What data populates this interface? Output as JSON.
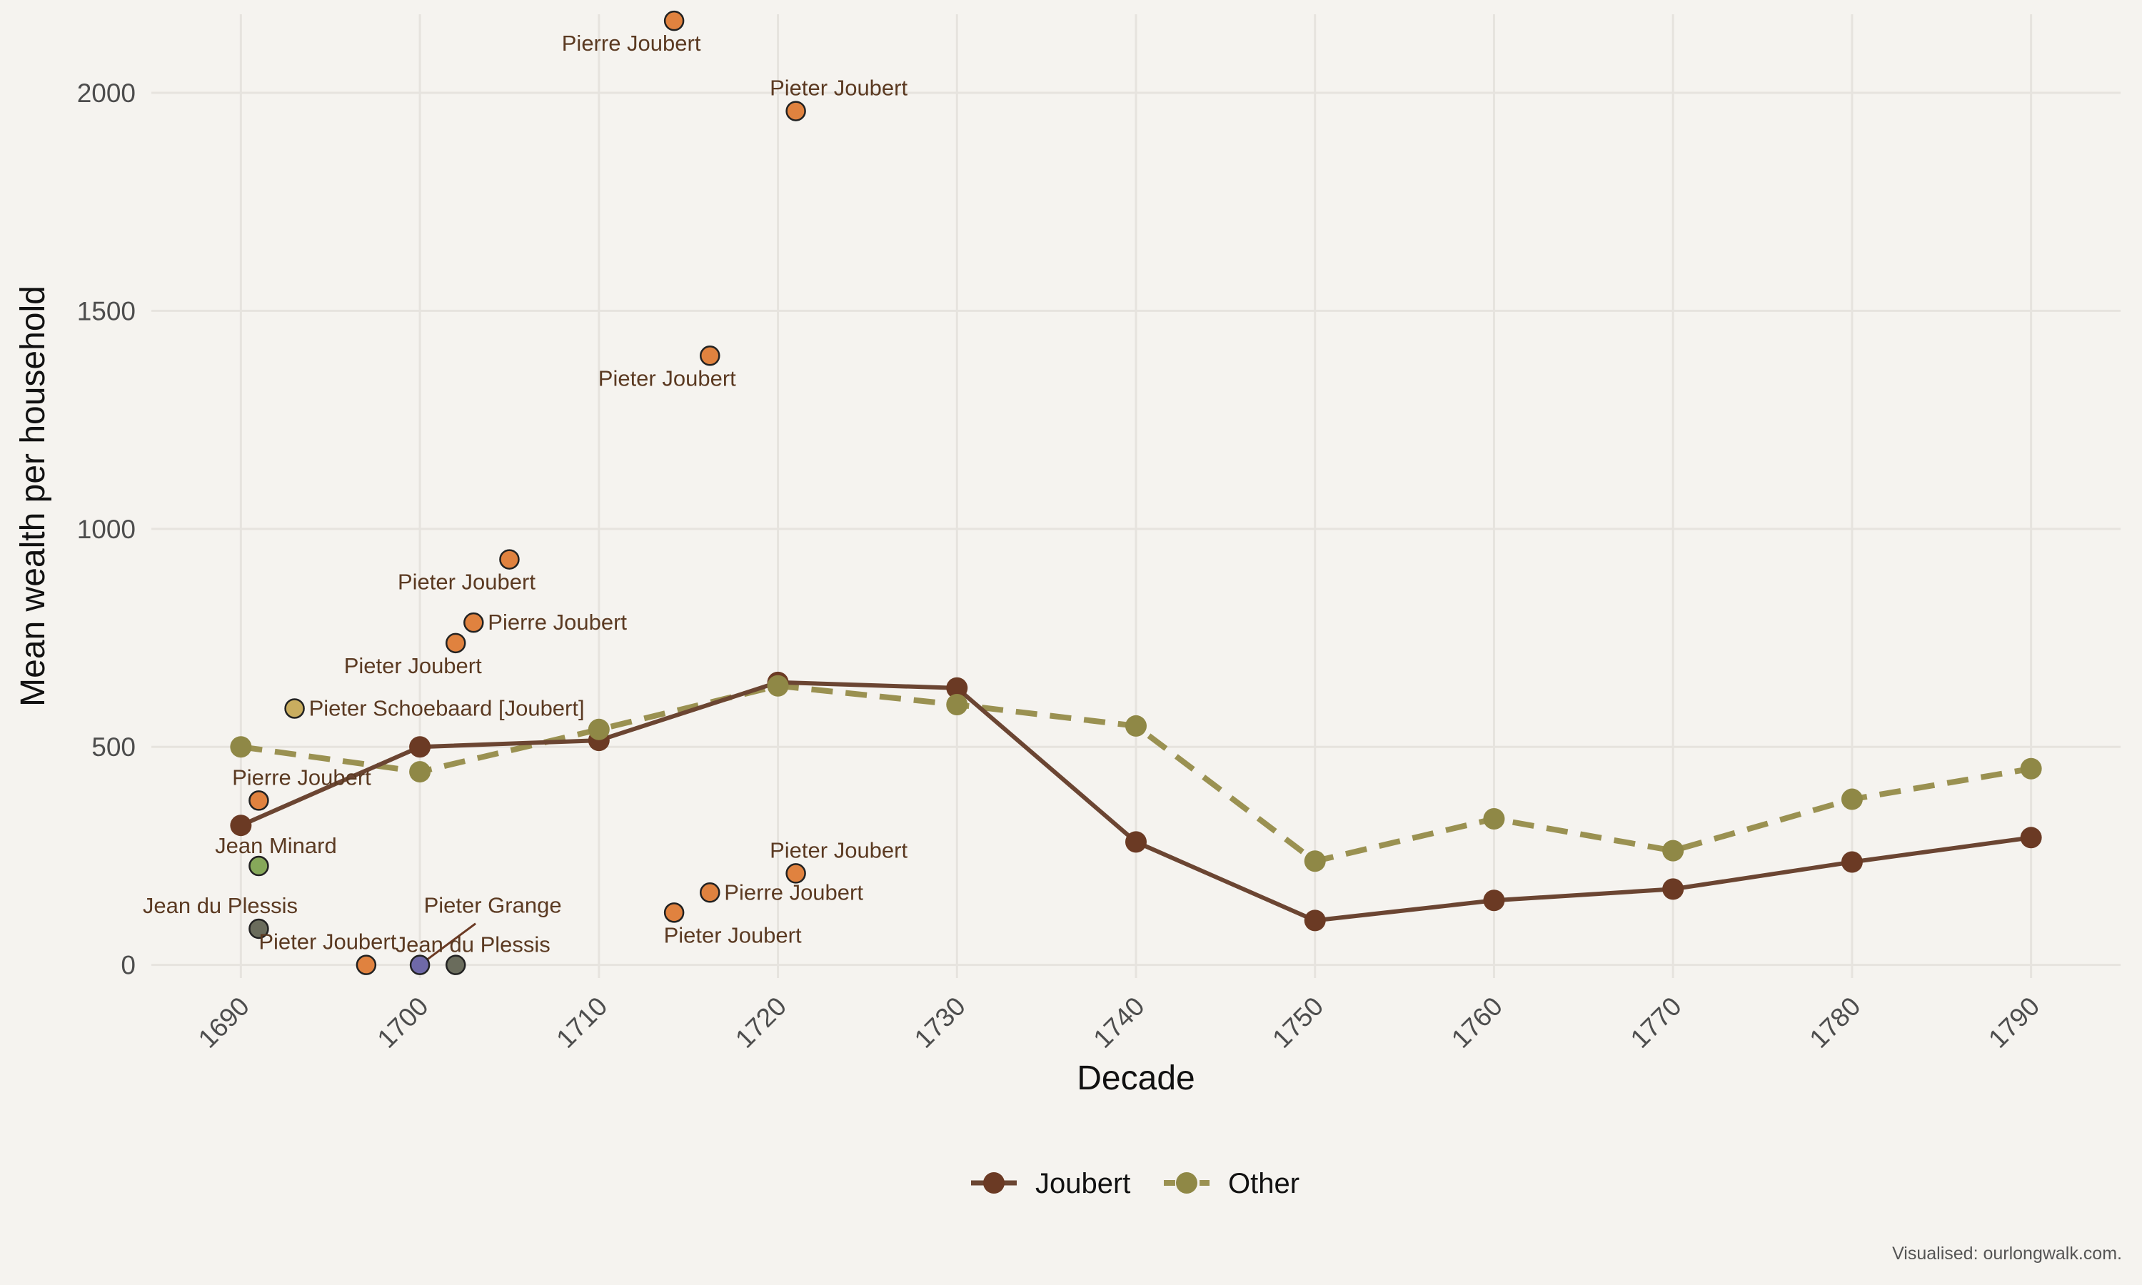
{
  "chart_data": {
    "type": "line",
    "xlabel": "Decade",
    "ylabel": "Mean wealth per household",
    "xlim": [
      1685,
      1795
    ],
    "ylim": [
      -30,
      2180
    ],
    "x_ticks": [
      1690,
      1700,
      1710,
      1720,
      1730,
      1740,
      1750,
      1760,
      1770,
      1780,
      1790
    ],
    "y_ticks": [
      0,
      500,
      1000,
      1500,
      2000
    ],
    "grid": true,
    "legend_position": "bottom",
    "caption": "Visualised: ourlongwalk.com.",
    "series": [
      {
        "name": "Joubert",
        "style": "solid",
        "color": "#6b4532",
        "point_color": "#6b3a24",
        "x": [
          1690,
          1700,
          1710,
          1720,
          1730,
          1740,
          1750,
          1760,
          1770,
          1780,
          1790
        ],
        "values": [
          320,
          500,
          515,
          648,
          635,
          282,
          102,
          148,
          174,
          236,
          292
        ]
      },
      {
        "name": "Other",
        "style": "dashed",
        "color": "#9a9151",
        "point_color": "#8f8846",
        "x": [
          1690,
          1700,
          1710,
          1720,
          1730,
          1740,
          1750,
          1760,
          1770,
          1780,
          1790
        ],
        "values": [
          500,
          443,
          540,
          640,
          597,
          548,
          238,
          335,
          262,
          380,
          450
        ]
      }
    ],
    "household_points": [
      {
        "label": "Pierre Joubert",
        "x": 1714.2,
        "y": 2165,
        "color": "#e0823f",
        "label_pos": "below"
      },
      {
        "label": "Pieter Joubert",
        "x": 1721.0,
        "y": 1958,
        "color": "#e0823f",
        "label_pos": "above"
      },
      {
        "label": "Pieter Joubert",
        "x": 1716.2,
        "y": 1397,
        "color": "#e0823f",
        "label_pos": "below-left"
      },
      {
        "label": "Pieter Joubert",
        "x": 1705.0,
        "y": 930,
        "color": "#e0823f",
        "label_pos": "below-left"
      },
      {
        "label": "Pierre Joubert",
        "x": 1703.0,
        "y": 785,
        "color": "#e0823f",
        "label_pos": "right"
      },
      {
        "label": "Pieter Joubert",
        "x": 1702.0,
        "y": 738,
        "color": "#e0823f",
        "label_pos": "below-left"
      },
      {
        "label": "Pieter Schoebaard [Joubert]",
        "x": 1693.0,
        "y": 588,
        "color": "#c9ad5f",
        "label_pos": "right"
      },
      {
        "label": "Pierre Joubert",
        "x": 1691.0,
        "y": 377,
        "color": "#e0823f",
        "label_pos": "above"
      },
      {
        "label": "Jean Minard",
        "x": 1691.0,
        "y": 227,
        "color": "#86a85a",
        "label_pos": "above-right"
      },
      {
        "label": "Pieter Joubert",
        "x": 1721.0,
        "y": 210,
        "color": "#e0823f",
        "label_pos": "above"
      },
      {
        "label": "Pierre Joubert",
        "x": 1716.2,
        "y": 166,
        "color": "#e0823f",
        "label_pos": "right"
      },
      {
        "label": "Pieter Joubert",
        "x": 1714.2,
        "y": 120,
        "color": "#e0823f",
        "label_pos": "below-right"
      },
      {
        "label": "Jean du Plessis",
        "x": 1691.0,
        "y": 83,
        "color": "#6a6c5c",
        "label_pos": "above-left"
      },
      {
        "label": "Pieter Joubert",
        "x": 1697.0,
        "y": 0,
        "color": "#e0823f",
        "label_pos": "above-left"
      },
      {
        "label": "Pieter Grange",
        "x": 1700.0,
        "y": 0,
        "color": "#6f69a8",
        "label_pos": "leader"
      },
      {
        "label": "Jean du Plessis",
        "x": 1702.0,
        "y": 0,
        "color": "#6a6c5c",
        "label_pos": "above-right"
      }
    ]
  }
}
